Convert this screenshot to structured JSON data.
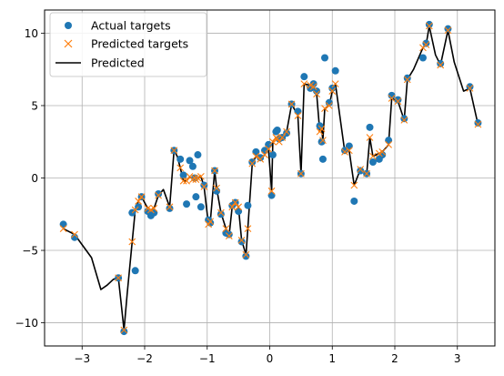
{
  "chart_data": {
    "type": "scatter",
    "title": "",
    "xlabel": "",
    "ylabel": "",
    "xlim": [
      -3.6,
      3.6
    ],
    "ylim": [
      -11.6,
      11.6
    ],
    "xticks": [
      -3,
      -2,
      -1,
      0,
      1,
      2,
      3
    ],
    "yticks": [
      -10,
      -5,
      0,
      5,
      10
    ],
    "xtick_labels": [
      "−3",
      "−2",
      "−1",
      "0",
      "1",
      "2",
      "3"
    ],
    "ytick_labels": [
      "−10",
      "−5",
      "0",
      "5",
      "10"
    ],
    "grid": true,
    "legend_position": "top-left",
    "legend_entries": [
      "Actual targets",
      "Predicted targets",
      "Predicted"
    ],
    "colors": {
      "actual": "#1f77b4",
      "predicted_targets": "#ff7f0e",
      "predicted_line": "#000000"
    },
    "series": [
      {
        "name": "Actual targets",
        "marker": "circle",
        "x": [
          -3.3,
          -3.12,
          -2.42,
          -2.33,
          -2.2,
          -2.15,
          -2.1,
          -2.05,
          -1.95,
          -1.9,
          -1.85,
          -1.78,
          -1.6,
          -1.53,
          -1.43,
          -1.38,
          -1.33,
          -1.28,
          -1.23,
          -1.2,
          -1.18,
          -1.15,
          -1.1,
          -1.05,
          -0.98,
          -0.95,
          -0.88,
          -0.85,
          -0.78,
          -0.7,
          -0.65,
          -0.6,
          -0.55,
          -0.5,
          -0.45,
          -0.38,
          -0.35,
          -0.28,
          -0.22,
          -0.15,
          -0.08,
          -0.02,
          0.03,
          0.05,
          0.1,
          0.12,
          0.15,
          0.2,
          0.27,
          0.35,
          0.45,
          0.5,
          0.55,
          0.65,
          0.7,
          0.75,
          0.8,
          0.83,
          0.85,
          0.88,
          0.95,
          1.0,
          1.05,
          1.2,
          1.27,
          1.35,
          1.45,
          1.55,
          1.6,
          1.65,
          1.75,
          1.8,
          1.9,
          1.95,
          2.05,
          2.15,
          2.2,
          2.45,
          2.5,
          2.55,
          2.73,
          2.85,
          3.2,
          3.33
        ],
        "y": [
          -3.2,
          -4.1,
          -6.9,
          -10.6,
          -2.4,
          -6.4,
          -2.0,
          -1.3,
          -2.3,
          -2.6,
          -2.4,
          -1.1,
          -2.1,
          1.9,
          1.3,
          0.2,
          -1.8,
          1.2,
          0.8,
          0.0,
          -1.3,
          1.6,
          -2.0,
          -0.5,
          -2.9,
          -3.1,
          0.5,
          -0.9,
          -2.5,
          -3.8,
          -3.9,
          -1.9,
          -1.7,
          -2.3,
          -4.4,
          -5.4,
          -1.9,
          1.1,
          1.8,
          1.4,
          1.9,
          2.3,
          -1.2,
          1.6,
          3.2,
          3.3,
          2.7,
          2.8,
          3.1,
          5.1,
          4.6,
          0.3,
          7.0,
          6.2,
          6.5,
          6.0,
          3.6,
          2.5,
          1.3,
          8.3,
          5.2,
          6.2,
          7.4,
          1.9,
          2.2,
          -1.6,
          0.5,
          0.3,
          3.5,
          1.1,
          1.3,
          1.6,
          2.6,
          5.7,
          5.4,
          4.1,
          6.9,
          8.3,
          9.3,
          10.6,
          7.9,
          10.3,
          6.3,
          3.8
        ]
      },
      {
        "name": "Predicted targets",
        "marker": "x",
        "x": [
          -3.3,
          -3.12,
          -2.42,
          -2.33,
          -2.2,
          -2.15,
          -2.1,
          -2.05,
          -1.95,
          -1.9,
          -1.85,
          -1.78,
          -1.6,
          -1.53,
          -1.43,
          -1.38,
          -1.33,
          -1.28,
          -1.23,
          -1.2,
          -1.18,
          -1.15,
          -1.1,
          -1.05,
          -0.98,
          -0.95,
          -0.88,
          -0.85,
          -0.78,
          -0.7,
          -0.65,
          -0.6,
          -0.55,
          -0.5,
          -0.45,
          -0.38,
          -0.35,
          -0.28,
          -0.22,
          -0.15,
          -0.08,
          -0.02,
          0.03,
          0.05,
          0.1,
          0.12,
          0.15,
          0.2,
          0.27,
          0.35,
          0.45,
          0.5,
          0.55,
          0.65,
          0.7,
          0.75,
          0.8,
          0.83,
          0.85,
          0.88,
          0.95,
          1.0,
          1.05,
          1.2,
          1.27,
          1.35,
          1.45,
          1.55,
          1.6,
          1.65,
          1.75,
          1.8,
          1.9,
          1.95,
          2.05,
          2.15,
          2.2,
          2.45,
          2.5,
          2.55,
          2.73,
          2.85,
          3.2,
          3.33
        ],
        "y": [
          -3.5,
          -3.9,
          -6.9,
          -10.5,
          -4.4,
          -2.2,
          -1.6,
          -1.3,
          -2.1,
          -2.2,
          -2.1,
          -1.2,
          -2.0,
          1.9,
          0.7,
          -0.2,
          -0.2,
          0.1,
          -0.1,
          0.0,
          -0.1,
          0.0,
          0.1,
          -0.6,
          -3.2,
          -3.0,
          0.5,
          -0.7,
          -2.4,
          -3.5,
          -4.0,
          -2.0,
          -1.7,
          -2.0,
          -4.3,
          -5.3,
          -3.5,
          1.0,
          1.5,
          1.3,
          1.6,
          2.0,
          -0.9,
          2.5,
          2.8,
          2.7,
          2.5,
          2.8,
          3.2,
          5.1,
          4.3,
          0.3,
          6.5,
          6.4,
          6.3,
          5.8,
          3.2,
          3.4,
          2.6,
          4.8,
          5.0,
          6.0,
          6.5,
          1.8,
          1.9,
          -0.5,
          0.6,
          0.3,
          2.8,
          1.5,
          1.7,
          1.8,
          2.3,
          5.5,
          5.3,
          4.0,
          6.8,
          9.0,
          9.2,
          10.5,
          7.8,
          10.2,
          6.2,
          3.7
        ]
      },
      {
        "name": "Predicted",
        "marker": "line",
        "x": [
          -3.3,
          -3.12,
          -2.85,
          -2.7,
          -2.6,
          -2.5,
          -2.42,
          -2.38,
          -2.33,
          -2.28,
          -2.2,
          -2.15,
          -2.1,
          -2.05,
          -1.95,
          -1.9,
          -1.85,
          -1.78,
          -1.7,
          -1.6,
          -1.53,
          -1.48,
          -1.43,
          -1.38,
          -1.33,
          -1.28,
          -1.23,
          -1.2,
          -1.18,
          -1.15,
          -1.1,
          -1.05,
          -0.98,
          -0.95,
          -0.88,
          -0.85,
          -0.78,
          -0.7,
          -0.65,
          -0.6,
          -0.55,
          -0.5,
          -0.45,
          -0.38,
          -0.35,
          -0.28,
          -0.22,
          -0.15,
          -0.08,
          -0.02,
          0.03,
          0.05,
          0.1,
          0.12,
          0.15,
          0.2,
          0.27,
          0.35,
          0.45,
          0.5,
          0.55,
          0.65,
          0.7,
          0.75,
          0.8,
          0.83,
          0.85,
          0.88,
          0.95,
          1.0,
          1.05,
          1.2,
          1.27,
          1.35,
          1.45,
          1.55,
          1.6,
          1.65,
          1.75,
          1.8,
          1.9,
          1.95,
          2.05,
          2.15,
          2.2,
          2.3,
          2.45,
          2.5,
          2.55,
          2.65,
          2.73,
          2.85,
          2.95,
          3.1,
          3.2,
          3.33
        ],
        "y": [
          -3.5,
          -3.9,
          -5.5,
          -7.7,
          -7.4,
          -7.0,
          -6.9,
          -8.5,
          -10.5,
          -8.0,
          -4.4,
          -2.2,
          -1.6,
          -1.3,
          -2.1,
          -2.2,
          -2.1,
          -1.2,
          -0.8,
          -2.0,
          1.9,
          1.5,
          0.7,
          -0.2,
          -0.2,
          0.1,
          -0.1,
          0.0,
          -0.1,
          0.0,
          0.1,
          -0.6,
          -3.2,
          -3.0,
          0.5,
          -0.7,
          -2.4,
          -3.5,
          -4.0,
          -2.0,
          -1.7,
          -2.0,
          -4.3,
          -5.3,
          -3.5,
          1.0,
          1.5,
          1.3,
          1.6,
          2.0,
          -0.9,
          2.5,
          2.8,
          2.7,
          2.5,
          2.8,
          3.2,
          5.1,
          4.3,
          0.3,
          6.5,
          6.4,
          6.3,
          5.8,
          3.2,
          3.4,
          2.6,
          4.8,
          5.0,
          6.0,
          6.5,
          1.8,
          1.9,
          -0.5,
          0.6,
          0.3,
          2.8,
          1.5,
          1.7,
          1.8,
          2.3,
          5.5,
          5.3,
          4.0,
          6.8,
          7.5,
          9.0,
          9.2,
          10.5,
          8.5,
          7.8,
          10.2,
          8.0,
          6.0,
          6.2,
          3.7
        ]
      }
    ]
  }
}
